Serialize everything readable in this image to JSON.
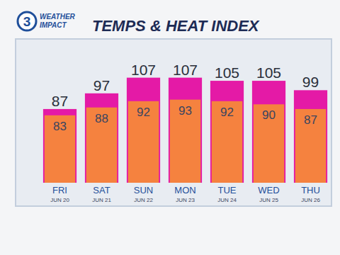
{
  "logo": {
    "number": "3",
    "text": [
      "WEATHER",
      "IMPACT"
    ]
  },
  "chart_data": {
    "type": "bar",
    "title": "TEMPS & HEAT INDEX",
    "categories": [
      "FRI",
      "SAT",
      "SUN",
      "MON",
      "TUE",
      "WED",
      "THU"
    ],
    "dates": [
      "JUN 20",
      "JUN 21",
      "JUN 22",
      "JUN 23",
      "JUN 24",
      "JUN 25",
      "JUN 26"
    ],
    "series": [
      {
        "color": "#e41aa6",
        "values": [
          87,
          97,
          107,
          107,
          105,
          105,
          99
        ]
      },
      {
        "color": "#f5823f",
        "values": [
          83,
          88,
          92,
          93,
          92,
          90,
          87
        ]
      }
    ],
    "ylim": [
      40,
      110
    ],
    "grid": false,
    "tick_labels": "x",
    "data_labels": true
  }
}
